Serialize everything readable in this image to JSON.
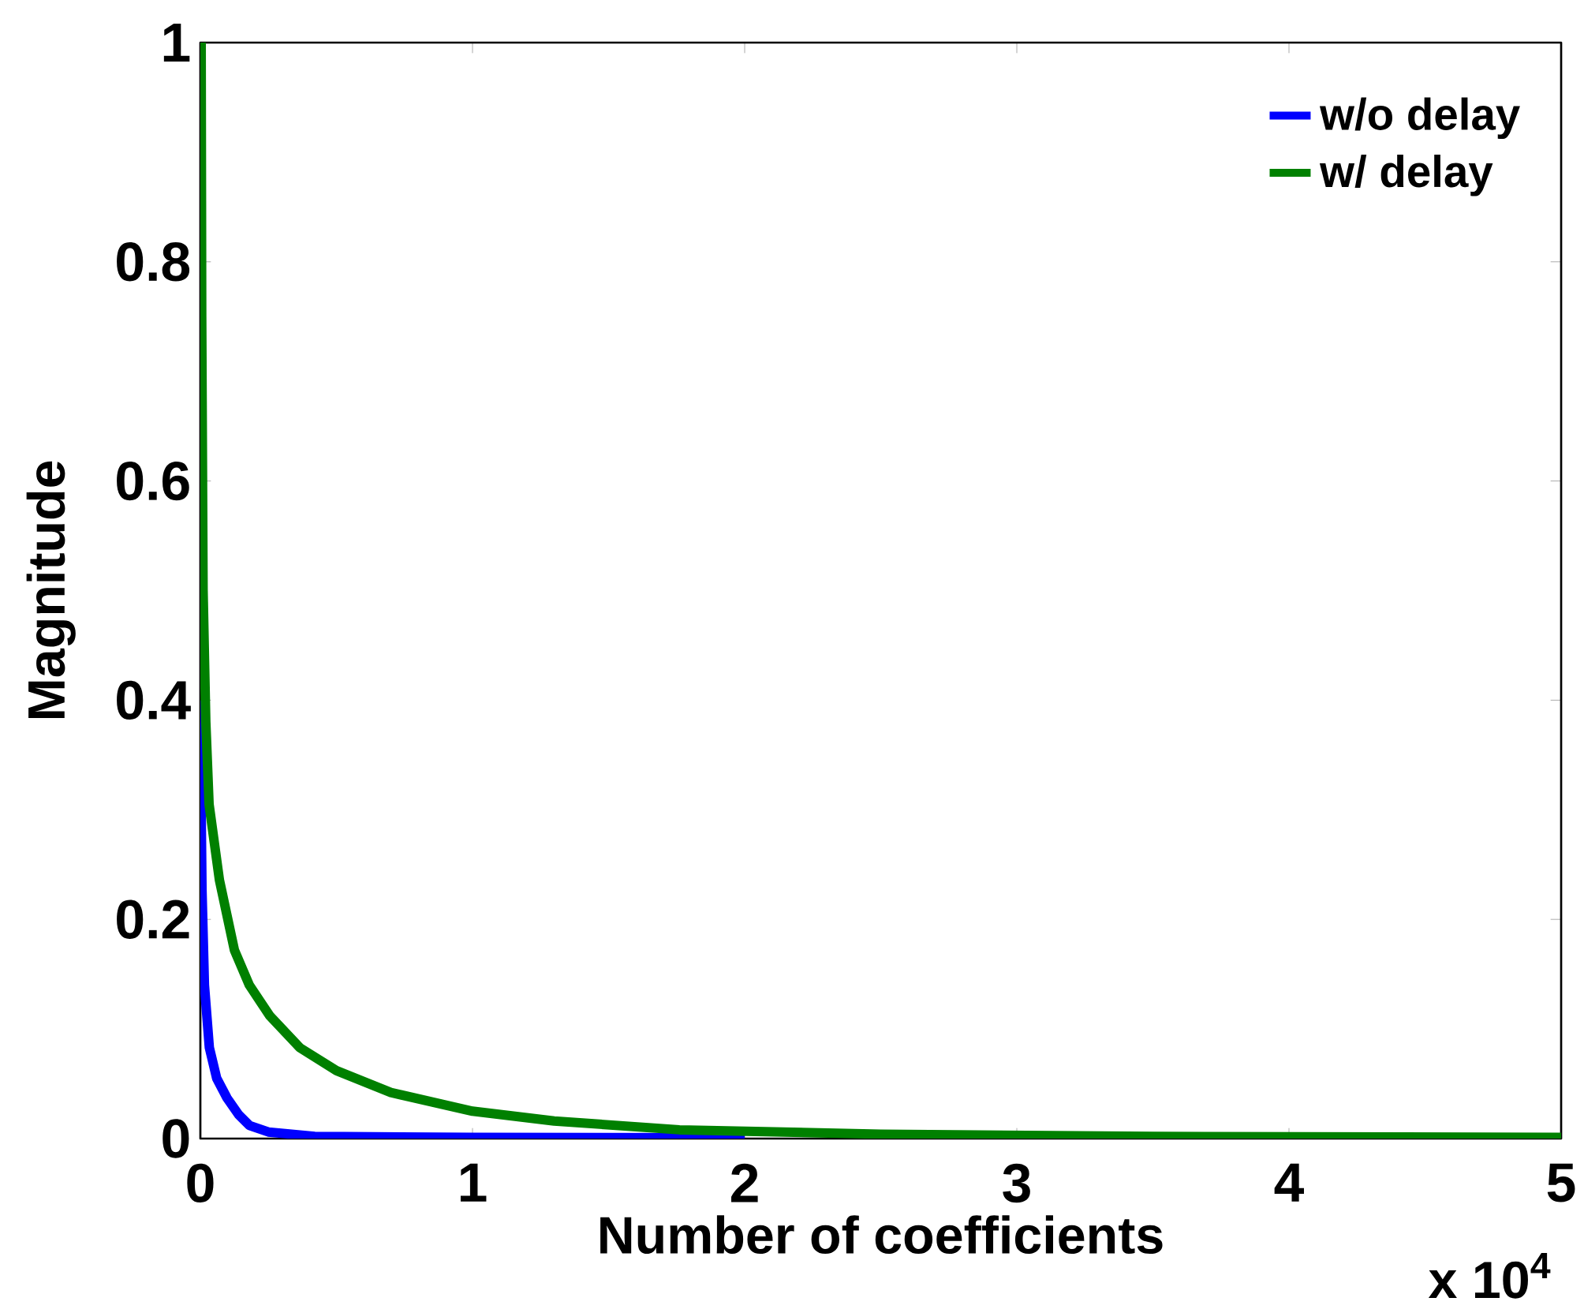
{
  "chart_data": {
    "type": "line",
    "xlabel": "Number of coefficients",
    "ylabel": "Magnitude",
    "annotations": [
      "x 10$^{4}$"
    ],
    "xlim": [
      0,
      5
    ],
    "xticks": [
      0,
      1,
      2,
      3,
      4,
      5
    ],
    "ylim": [
      0,
      1
    ],
    "yticks": [
      0,
      0.2,
      0.4,
      0.6,
      0.8,
      1
    ],
    "legend": "top right",
    "series": [
      {
        "name": "w/o delay",
        "color": "#0000ff",
        "x": [
          0,
          0.003,
          0.006,
          0.015,
          0.033,
          0.06,
          0.098,
          0.14,
          0.18,
          0.25,
          0.42,
          1,
          2
        ],
        "values": [
          0.4,
          0.3,
          0.227,
          0.14,
          0.083,
          0.055,
          0.037,
          0.022,
          0.012,
          0.006,
          0.002,
          0.001,
          0.0008
        ]
      },
      {
        "name": "w/ delay",
        "color": "#008000",
        "x": [
          0.003,
          0.005,
          0.01,
          0.02,
          0.032,
          0.07,
          0.125,
          0.18,
          0.255,
          0.365,
          0.5,
          0.7,
          1.0,
          1.3,
          1.76,
          2.5,
          3.5,
          5
        ],
        "values": [
          1.0,
          0.75,
          0.5,
          0.38,
          0.305,
          0.236,
          0.172,
          0.14,
          0.112,
          0.083,
          0.062,
          0.042,
          0.025,
          0.016,
          0.008,
          0.004,
          0.002,
          0.001
        ]
      }
    ]
  }
}
